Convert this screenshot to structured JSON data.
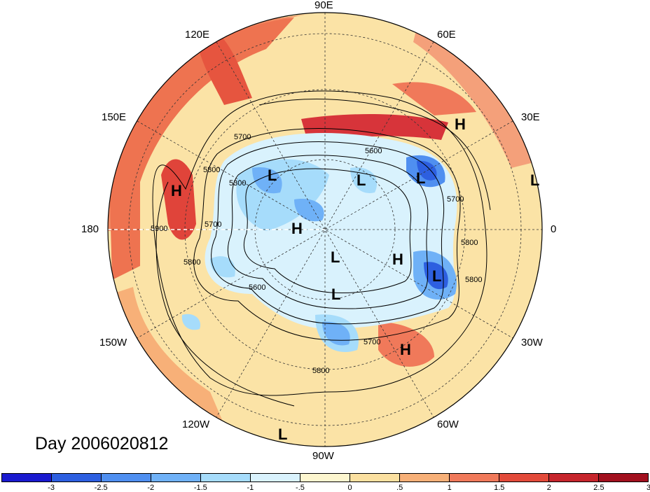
{
  "title": "Day 2006020812",
  "longitude_labels": [
    "90E",
    "60E",
    "30E",
    "0",
    "30W",
    "60W",
    "90W",
    "120W",
    "150W",
    "180",
    "150E",
    "120E"
  ],
  "contour_labels": [
    "5700",
    "5600",
    "5800",
    "5300",
    "5700",
    "5900",
    "5800",
    "5700",
    "5600",
    "5700",
    "5800",
    "5800",
    "5800"
  ],
  "pressure_centers": [
    {
      "type": "H"
    },
    {
      "type": "H"
    },
    {
      "type": "H"
    },
    {
      "type": "H"
    },
    {
      "type": "H"
    },
    {
      "type": "L"
    },
    {
      "type": "L"
    },
    {
      "type": "L"
    },
    {
      "type": "L"
    },
    {
      "type": "L"
    },
    {
      "type": "L"
    },
    {
      "type": "L"
    },
    {
      "type": "L"
    }
  ],
  "colorbar": {
    "colors": [
      "#1a1acf",
      "#2d5fe0",
      "#4f8ff0",
      "#6fb1f7",
      "#a6dcfb",
      "#d9f2fd",
      "#fdf6cf",
      "#fbe0a0",
      "#f7b078",
      "#f0795a",
      "#e24a3a",
      "#c6252c",
      "#a2101e"
    ],
    "ticks": [
      "-3",
      "-2.5",
      "-2",
      "-1.5",
      "-1",
      "-.5",
      "0",
      ".5",
      "1",
      "1.5",
      "2",
      "2.5",
      "3"
    ]
  }
}
